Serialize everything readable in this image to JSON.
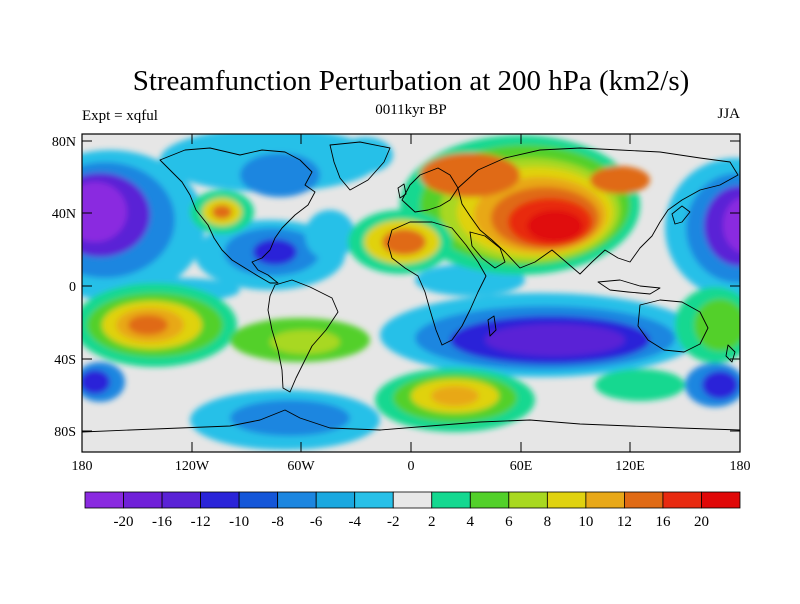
{
  "figure": {
    "title": "Streamfunction Perturbation at 200 hPa (km2/s)",
    "subtitle": "0011kyr BP",
    "left_label": "Expt = xqful",
    "right_label": "JJA"
  },
  "axes": {
    "lat_ticks": [
      "80N",
      "40N",
      "0",
      "40S",
      "80S"
    ],
    "lon_ticks": [
      "180",
      "120W",
      "60W",
      "0",
      "60E",
      "120E",
      "180"
    ]
  },
  "colorbar": {
    "labels": [
      "-20",
      "-16",
      "-12",
      "-10",
      "-8",
      "-6",
      "-4",
      "-2",
      "2",
      "4",
      "6",
      "8",
      "10",
      "12",
      "16",
      "20"
    ],
    "colors": [
      "#8a2ae0",
      "#7020d8",
      "#5a22d6",
      "#2a24d8",
      "#1456d8",
      "#1c86e0",
      "#1aa8e0",
      "#28c0e8",
      "#e8e8e8",
      "#14d890",
      "#52d02a",
      "#a8d820",
      "#e0d210",
      "#e8a818",
      "#e06a14",
      "#e82a10",
      "#e00808"
    ]
  },
  "map": {
    "projection": "cylindrical-equidistant",
    "background_color": "#e6e6e6",
    "coastline_color": "#000000"
  }
}
